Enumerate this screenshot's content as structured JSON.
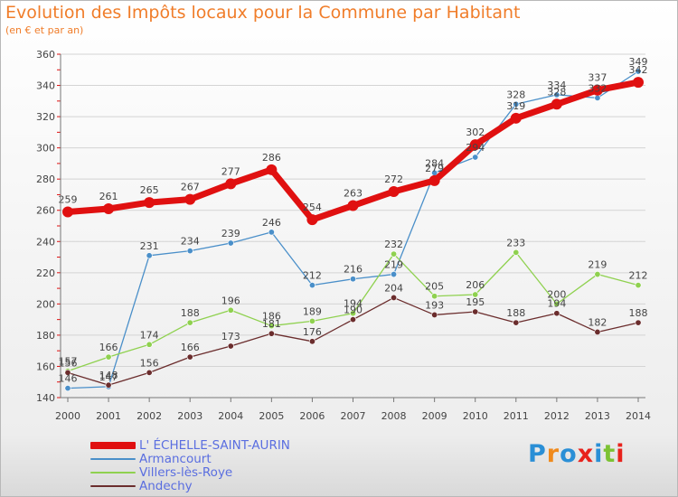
{
  "header": {
    "title": "Evolution des Impôts locaux pour la Commune par Habitant",
    "subtitle": "(en € et par an)"
  },
  "brand": {
    "logo_text": "Proxiti",
    "letters": [
      "P",
      "r",
      "o",
      "x",
      "i",
      "t",
      "i"
    ],
    "letter_colors": [
      "#2a8fd6",
      "#f08a1c",
      "#2a8fd6",
      "#e8221c",
      "#2a8fd6",
      "#7cc233",
      "#e8221c"
    ]
  },
  "chart_data": {
    "type": "line",
    "title": "Evolution des Impôts locaux pour la Commune par Habitant",
    "subtitle": "(en € et par an)",
    "x": [
      "2000",
      "2001",
      "2002",
      "2003",
      "2004",
      "2005",
      "2006",
      "2007",
      "2008",
      "2009",
      "2010",
      "2011",
      "2012",
      "2013",
      "2014"
    ],
    "ylim": [
      140,
      360
    ],
    "yticks": [
      140,
      160,
      180,
      200,
      220,
      240,
      260,
      280,
      300,
      320,
      340,
      360
    ],
    "grid": "horizontal",
    "legend_position": "bottom-left",
    "series": [
      {
        "name": "L' ÉCHELLE-SAINT-AURIN",
        "color": "#e01010",
        "width": "thick",
        "values": [
          259,
          261,
          265,
          267,
          277,
          286,
          254,
          263,
          272,
          279,
          302,
          319,
          328,
          337,
          342
        ],
        "labels": [
          "259",
          "261",
          "265",
          "267",
          "277",
          "286",
          "254",
          "263",
          "272",
          "279",
          "302",
          "319",
          "328",
          "337",
          "342"
        ]
      },
      {
        "name": "Armancourt",
        "color": "#4a8fc9",
        "width": "thin",
        "values": [
          146,
          147,
          231,
          234,
          239,
          246,
          212,
          216,
          219,
          284,
          294,
          328,
          334,
          332,
          349
        ],
        "labels": [
          "146",
          "147",
          "231",
          "234",
          "239",
          "246",
          "212",
          "216",
          "219",
          "284",
          "294",
          "328",
          "334",
          "332",
          "349"
        ]
      },
      {
        "name": "Villers-lès-Roye",
        "color": "#8fd14f",
        "width": "thin",
        "values": [
          157,
          166,
          174,
          188,
          196,
          186,
          189,
          194,
          232,
          205,
          206,
          233,
          200,
          219,
          212
        ],
        "labels": [
          "157",
          "166",
          "174",
          "188",
          "196",
          "186",
          "189",
          "194",
          "232",
          "205",
          "206",
          "233",
          "200",
          "219",
          "212"
        ]
      },
      {
        "name": "Andechy",
        "color": "#6b2d2d",
        "width": "thin",
        "values": [
          156,
          148,
          156,
          166,
          173,
          181,
          176,
          190,
          204,
          193,
          195,
          188,
          194,
          182,
          188
        ],
        "labels": [
          "156",
          "148",
          "156",
          "166",
          "173",
          "181",
          "176",
          "190",
          "204",
          "193",
          "195",
          "188",
          "194",
          "182",
          "188"
        ]
      }
    ]
  }
}
